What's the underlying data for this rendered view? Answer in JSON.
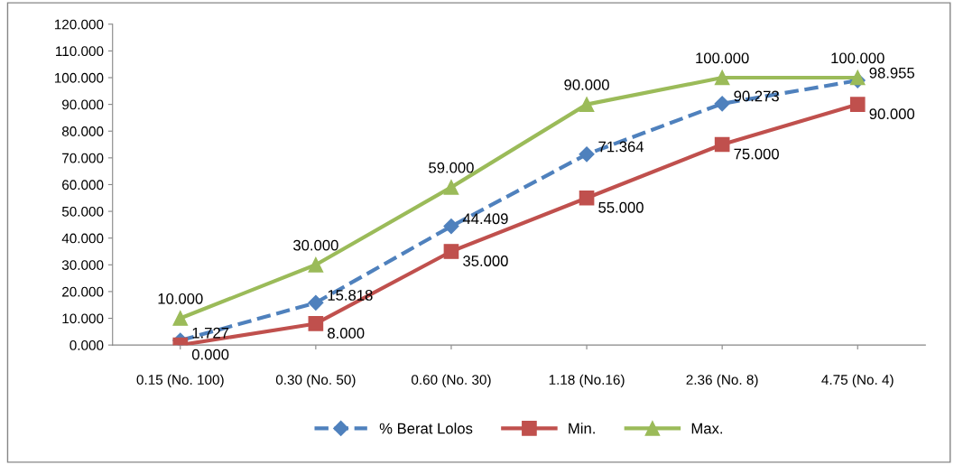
{
  "chart_data": {
    "type": "line",
    "categories": [
      "0.15 (No. 100)",
      "0.30 (No. 50)",
      "0.60 (No. 30)",
      "1.18 (No.16)",
      "2.36 (No. 8)",
      "4.75 (No. 4)"
    ],
    "series": [
      {
        "name": "% Berat Lolos",
        "color": "#4f81bd",
        "marker": "diamond",
        "line_style": "dashed",
        "values": [
          1.727,
          15.818,
          44.409,
          71.364,
          90.273,
          98.955
        ],
        "value_labels": [
          "1.727",
          "15.818",
          "44.409",
          "71.364",
          "90.273",
          "98.955"
        ]
      },
      {
        "name": "Min.",
        "color": "#c0504d",
        "marker": "square",
        "line_style": "solid",
        "values": [
          0,
          8,
          35,
          55,
          75,
          90
        ],
        "value_labels": [
          "0.000",
          "8.000",
          "35.000",
          "55.000",
          "75.000",
          "90.000"
        ]
      },
      {
        "name": "Max.",
        "color": "#9bbb59",
        "marker": "triangle",
        "line_style": "solid",
        "values": [
          10,
          30,
          59,
          90,
          100,
          100
        ],
        "value_labels": [
          "10.000",
          "30.000",
          "59.000",
          "90.000",
          "100.000",
          "100.000"
        ]
      }
    ],
    "ylim": [
      0,
      120
    ],
    "yticks": [
      {
        "value": 0,
        "label": "0.000"
      },
      {
        "value": 10,
        "label": "10.000"
      },
      {
        "value": 20,
        "label": "20.000"
      },
      {
        "value": 30,
        "label": "30.000"
      },
      {
        "value": 40,
        "label": "40.000"
      },
      {
        "value": 50,
        "label": "50.000"
      },
      {
        "value": 60,
        "label": "60.000"
      },
      {
        "value": 70,
        "label": "70.000"
      },
      {
        "value": 80,
        "label": "80.000"
      },
      {
        "value": 90,
        "label": "90.000"
      },
      {
        "value": 100,
        "label": "100.000"
      },
      {
        "value": 110,
        "label": "110.000"
      },
      {
        "value": 120,
        "label": "120.000"
      }
    ],
    "grid": false,
    "legend": "bottom"
  }
}
